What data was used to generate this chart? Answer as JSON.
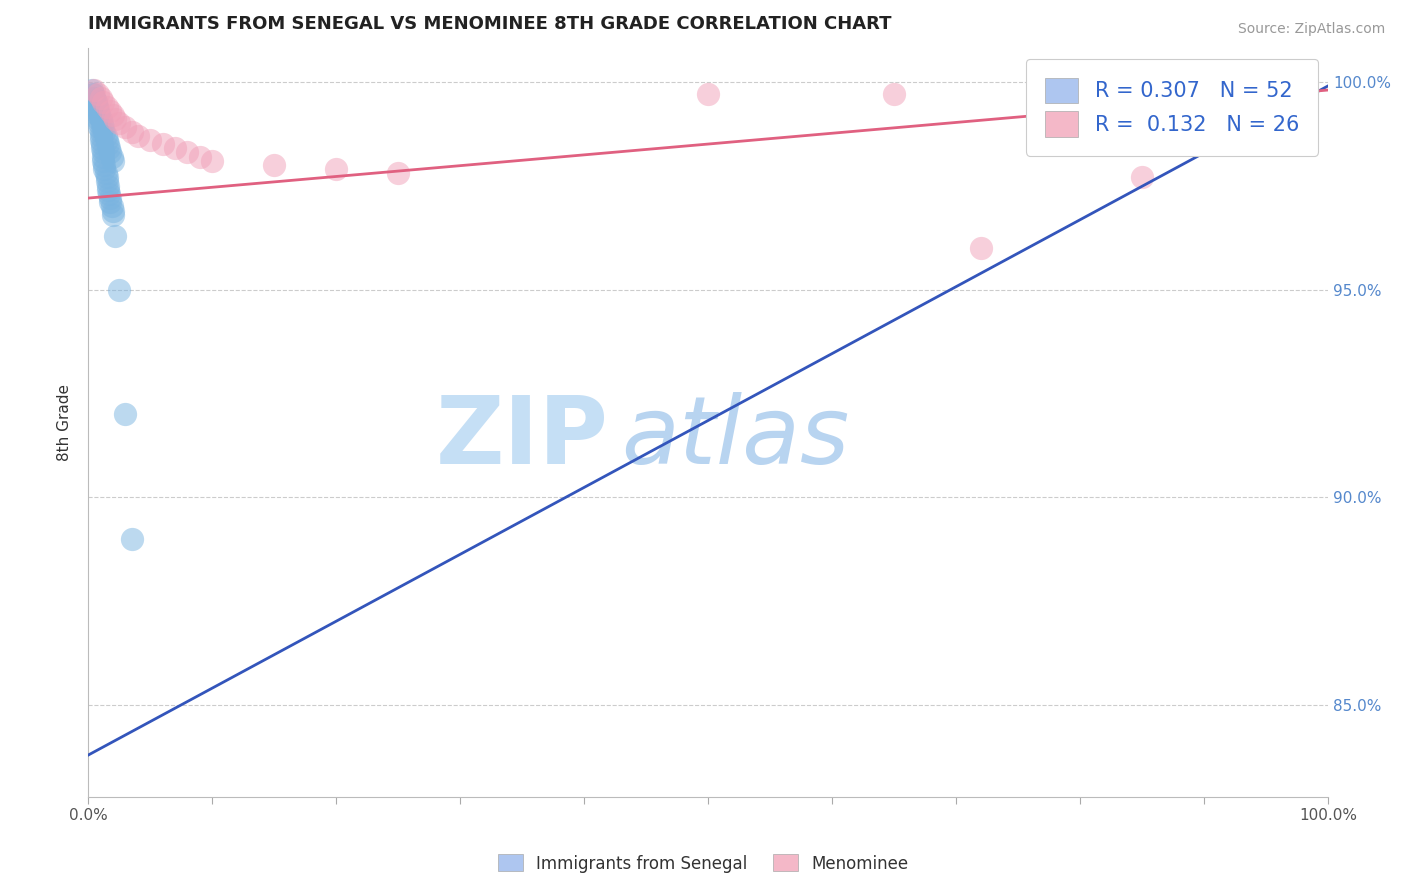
{
  "title": "IMMIGRANTS FROM SENEGAL VS MENOMINEE 8TH GRADE CORRELATION CHART",
  "source": "Source: ZipAtlas.com",
  "ylabel": "8th Grade",
  "xlim": [
    0.0,
    1.0
  ],
  "ylim": [
    0.828,
    1.008
  ],
  "ytick_vals": [
    0.85,
    0.9,
    0.95,
    1.0
  ],
  "ytick_labels": [
    "85.0%",
    "90.0%",
    "95.0%",
    "100.0%"
  ],
  "xtick_vals": [
    0.0,
    0.1,
    0.2,
    0.3,
    0.4,
    0.5,
    0.6,
    0.7,
    0.8,
    0.9,
    1.0
  ],
  "legend_color1": "#aec6f0",
  "legend_color2": "#f4b8c8",
  "watermark_zip": "ZIP",
  "watermark_atlas": "atlas",
  "watermark_color_zip": "#c5dff5",
  "watermark_color_atlas": "#b8d4f0",
  "blue_color": "#7ab4e0",
  "pink_color": "#f0a0b8",
  "trendline_blue": "#3355bb",
  "trendline_pink": "#e06080",
  "scatter_blue_alpha": 0.5,
  "scatter_pink_alpha": 0.5,
  "grid_color": "#cccccc",
  "background_color": "#ffffff",
  "blue_scatter_x": [
    0.004,
    0.005,
    0.006,
    0.007,
    0.008,
    0.008,
    0.008,
    0.009,
    0.009,
    0.01,
    0.01,
    0.01,
    0.011,
    0.011,
    0.012,
    0.012,
    0.012,
    0.013,
    0.013,
    0.014,
    0.015,
    0.015,
    0.016,
    0.016,
    0.017,
    0.018,
    0.018,
    0.019,
    0.02,
    0.02,
    0.003,
    0.004,
    0.005,
    0.006,
    0.007,
    0.008,
    0.009,
    0.01,
    0.011,
    0.012,
    0.013,
    0.014,
    0.015,
    0.016,
    0.017,
    0.018,
    0.019,
    0.02,
    0.022,
    0.025,
    0.03,
    0.035
  ],
  "blue_scatter_y": [
    0.997,
    0.996,
    0.995,
    0.994,
    0.993,
    0.992,
    0.991,
    0.99,
    0.989,
    0.988,
    0.987,
    0.986,
    0.985,
    0.984,
    0.983,
    0.982,
    0.981,
    0.98,
    0.979,
    0.978,
    0.977,
    0.976,
    0.975,
    0.974,
    0.973,
    0.972,
    0.971,
    0.97,
    0.969,
    0.968,
    0.998,
    0.997,
    0.996,
    0.995,
    0.994,
    0.993,
    0.992,
    0.991,
    0.99,
    0.989,
    0.988,
    0.987,
    0.986,
    0.985,
    0.984,
    0.983,
    0.982,
    0.981,
    0.963,
    0.95,
    0.92,
    0.89
  ],
  "pink_scatter_x": [
    0.005,
    0.008,
    0.01,
    0.012,
    0.015,
    0.018,
    0.02,
    0.022,
    0.025,
    0.03,
    0.035,
    0.04,
    0.05,
    0.06,
    0.07,
    0.08,
    0.09,
    0.1,
    0.15,
    0.2,
    0.25,
    0.5,
    0.65,
    0.72,
    0.8,
    0.85
  ],
  "pink_scatter_y": [
    0.998,
    0.997,
    0.996,
    0.995,
    0.994,
    0.993,
    0.992,
    0.991,
    0.99,
    0.989,
    0.988,
    0.987,
    0.986,
    0.985,
    0.984,
    0.983,
    0.982,
    0.981,
    0.98,
    0.979,
    0.978,
    0.997,
    0.997,
    0.96,
    0.995,
    0.977
  ],
  "blue_trend_x0": 0.0,
  "blue_trend_x1": 1.0,
  "blue_trend_y0": 0.838,
  "blue_trend_y1": 0.999,
  "pink_trend_x0": 0.0,
  "pink_trend_x1": 1.0,
  "pink_trend_y0": 0.972,
  "pink_trend_y1": 0.998,
  "R_blue": "0.307",
  "N_blue": "52",
  "R_pink": "0.132",
  "N_pink": "26",
  "bottom_legend_labels": [
    "Immigrants from Senegal",
    "Menominee"
  ],
  "bottom_legend_colors": [
    "#aec6f0",
    "#f4b8c8"
  ]
}
